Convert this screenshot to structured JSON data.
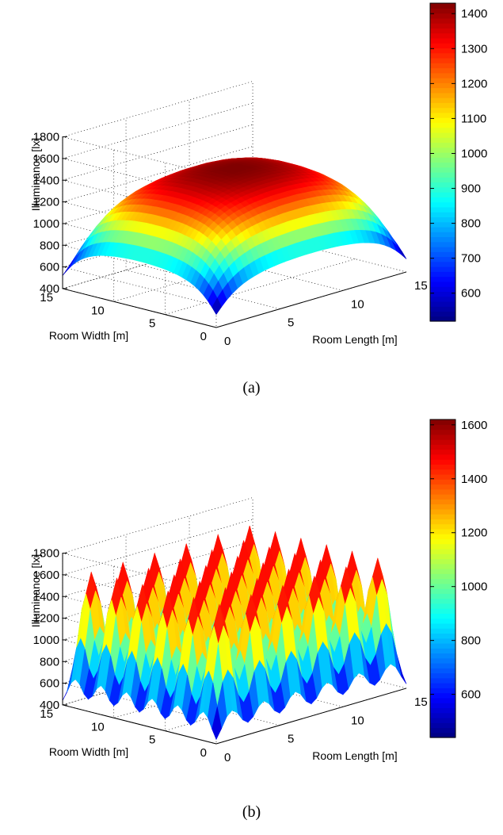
{
  "chart_data": [
    {
      "type": "surface3d",
      "panel": "a",
      "caption": "(a)",
      "zlabel": "Illuminance [lx]",
      "xlabel": "Room Length [m]",
      "ylabel": "Room Width [m]",
      "zlim": [
        400,
        1800
      ],
      "z_ticks": [
        "400",
        "600",
        "800",
        "1000",
        "1200",
        "1400",
        "1600",
        "1800"
      ],
      "x_ticks": [
        "0",
        "5",
        "10",
        "15"
      ],
      "y_ticks": [
        "0",
        "5",
        "10",
        "15"
      ],
      "xlim": [
        0,
        15
      ],
      "ylim": [
        0,
        15
      ],
      "colorbar_range": [
        520,
        1430
      ],
      "colorbar_ticks": [
        "600",
        "700",
        "800",
        "900",
        "1000",
        "1100",
        "1200",
        "1300",
        "1400"
      ],
      "surface": {
        "z_min": 520,
        "z_max": 1430,
        "profile": "dome",
        "lamps_per_side": 10
      },
      "colormap": "jet",
      "grid": true
    },
    {
      "type": "surface3d",
      "panel": "b",
      "caption": "(b)",
      "zlabel": "Illuminance [lx]",
      "xlabel": "Room Length [m]",
      "ylabel": "Room Width [m]",
      "zlim": [
        400,
        1800
      ],
      "z_ticks": [
        "400",
        "600",
        "800",
        "1000",
        "1200",
        "1400",
        "1600",
        "1800"
      ],
      "x_ticks": [
        "0",
        "5",
        "10",
        "15"
      ],
      "y_ticks": [
        "0",
        "5",
        "10",
        "15"
      ],
      "xlim": [
        0,
        15
      ],
      "ylim": [
        0,
        15
      ],
      "colorbar_range": [
        440,
        1620
      ],
      "colorbar_ticks": [
        "600",
        "800",
        "1000",
        "1200",
        "1400",
        "1600"
      ],
      "surface": {
        "z_min": 440,
        "z_max": 1620,
        "profile": "bumps",
        "lamps_per_side": 6
      },
      "colormap": "jet",
      "grid": true
    }
  ]
}
